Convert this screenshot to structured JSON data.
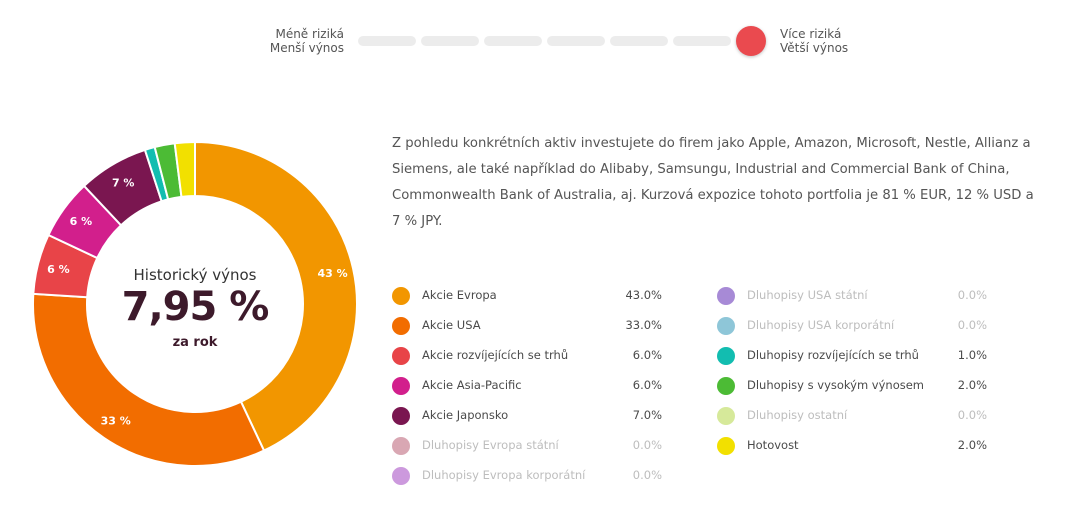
{
  "risk": {
    "left_line1": "Méně riziká",
    "left_line2": "Menší výnos",
    "right_line1": "Více riziká",
    "right_line2": "Větší výnos",
    "level": 6,
    "levels": 6,
    "knob_color": "#ea4a4f"
  },
  "center": {
    "title": "Historický výnos",
    "value": "7,95 %",
    "subtitle": "za rok"
  },
  "description": "Z pohledu konkrétních aktiv investujete do firem jako Apple, Amazon, Microsoft, Nestle, Allianz a Siemens, ale také například do Alibaby, Samsungu, Industrial and Commercial Bank of China, Commonwealth Bank of Australia, aj. Kurzová expozice tohoto portfolia je 81 % EUR, 12 % USD a 7 % JPY.",
  "chart_data": {
    "type": "pie",
    "series": [
      {
        "name": "Akcie Evropa",
        "value": 43.0,
        "label": "43 %",
        "color": "#f29600"
      },
      {
        "name": "Akcie USA",
        "value": 33.0,
        "label": "33 %",
        "color": "#f26d00"
      },
      {
        "name": "Akcie rozvíjejících se trhů",
        "value": 6.0,
        "label": "6 %",
        "color": "#e84448"
      },
      {
        "name": "Akcie Asia-Pacific",
        "value": 6.0,
        "label": "6 %",
        "color": "#d21f8c"
      },
      {
        "name": "Akcie Japonsko",
        "value": 7.0,
        "label": "7 %",
        "color": "#7a1650"
      },
      {
        "name": "Dluhopisy Evropa státní",
        "value": 0.0,
        "label": "",
        "color": "#d9a7b3"
      },
      {
        "name": "Dluhopisy Evropa korporátní",
        "value": 0.0,
        "label": "",
        "color": "#cc99dd"
      },
      {
        "name": "Dluhopisy USA státní",
        "value": 0.0,
        "label": "",
        "color": "#a78ad6"
      },
      {
        "name": "Dluhopisy USA korporátní",
        "value": 0.0,
        "label": "",
        "color": "#8ec6d8"
      },
      {
        "name": "Dluhopisy rozvíjejících se trhů",
        "value": 1.0,
        "label": "",
        "color": "#12bdb0"
      },
      {
        "name": "Dluhopisy s vysokým výnosem",
        "value": 2.0,
        "label": "",
        "color": "#4cbb35"
      },
      {
        "name": "Dluhopisy ostatní",
        "value": 0.0,
        "label": "",
        "color": "#d6e99a"
      },
      {
        "name": "Hotovost",
        "value": 2.0,
        "label": "",
        "color": "#f2e000"
      }
    ]
  },
  "legend": {
    "col1": [
      {
        "name": "Akcie Evropa",
        "value": "43.0%",
        "color": "#f29600"
      },
      {
        "name": "Akcie USA",
        "value": "33.0%",
        "color": "#f26d00"
      },
      {
        "name": "Akcie rozvíjejících se trhů",
        "value": "6.0%",
        "color": "#e84448"
      },
      {
        "name": "Akcie Asia-Pacific",
        "value": "6.0%",
        "color": "#d21f8c"
      },
      {
        "name": "Akcie Japonsko",
        "value": "7.0%",
        "color": "#7a1650"
      },
      {
        "name": "Dluhopisy Evropa státní",
        "value": "0.0%",
        "color": "#d9a7b3"
      },
      {
        "name": "Dluhopisy Evropa korporátní",
        "value": "0.0%",
        "color": "#cc99dd"
      }
    ],
    "col2": [
      {
        "name": "Dluhopisy USA státní",
        "value": "0.0%",
        "color": "#a78ad6"
      },
      {
        "name": "Dluhopisy USA korporátní",
        "value": "0.0%",
        "color": "#8ec6d8"
      },
      {
        "name": "Dluhopisy rozvíjejících se trhů",
        "value": "1.0%",
        "color": "#12bdb0"
      },
      {
        "name": "Dluhopisy s vysokým výnosem",
        "value": "2.0%",
        "color": "#4cbb35"
      },
      {
        "name": "Dluhopisy ostatní",
        "value": "0.0%",
        "color": "#d6e99a"
      },
      {
        "name": "Hotovost",
        "value": "2.0%",
        "color": "#f2e000"
      }
    ]
  }
}
